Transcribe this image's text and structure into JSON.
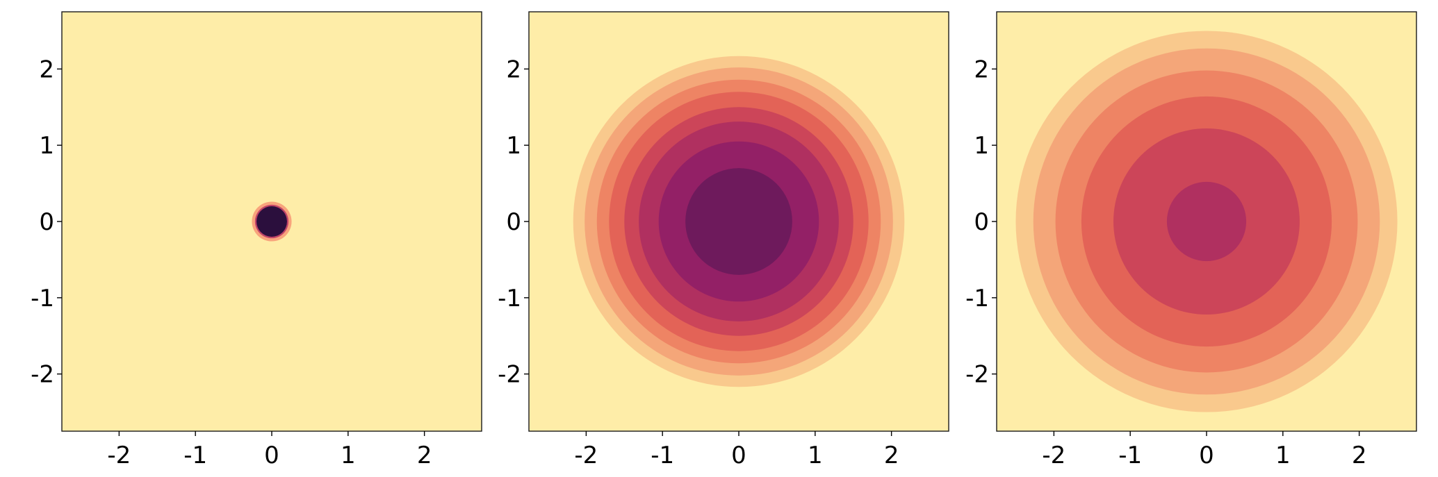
{
  "chart_data": [
    {
      "type": "contour",
      "xlim": [
        -2.75,
        2.75
      ],
      "ylim": [
        -2.75,
        2.75
      ],
      "xticks": [
        -2,
        -1,
        0,
        1,
        2
      ],
      "yticks": [
        -2,
        -1,
        0,
        1,
        2
      ],
      "xtick_labels": [
        "-2",
        "-1",
        "0",
        "1",
        "2"
      ],
      "ytick_labels": [
        "-2",
        "-1",
        "0",
        "1",
        "2"
      ],
      "grid": false,
      "background_color": "#feeda8",
      "levels": [
        {
          "radius": 0.26,
          "color": "#f8a47c"
        },
        {
          "radius": 0.22,
          "color": "#c04468"
        },
        {
          "radius": 0.2,
          "color": "#2b0f3d"
        }
      ]
    },
    {
      "type": "contour",
      "xlim": [
        -2.75,
        2.75
      ],
      "ylim": [
        -2.75,
        2.75
      ],
      "xticks": [
        -2,
        -1,
        0,
        1,
        2
      ],
      "yticks": [
        -2,
        -1,
        0,
        1,
        2
      ],
      "xtick_labels": [
        "-2",
        "-1",
        "0",
        "1",
        "2"
      ],
      "ytick_labels": [
        "-2",
        "-1",
        "0",
        "1",
        "2"
      ],
      "grid": false,
      "background_color": "#feeda8",
      "levels": [
        {
          "radius": 2.17,
          "color": "#f9c98d"
        },
        {
          "radius": 2.02,
          "color": "#f4a679"
        },
        {
          "radius": 1.86,
          "color": "#ee8464"
        },
        {
          "radius": 1.7,
          "color": "#e36357"
        },
        {
          "radius": 1.5,
          "color": "#cc4559"
        },
        {
          "radius": 1.31,
          "color": "#b03060"
        },
        {
          "radius": 1.05,
          "color": "#932066"
        },
        {
          "radius": 0.7,
          "color": "#6e1a5c"
        }
      ]
    },
    {
      "type": "contour",
      "xlim": [
        -2.75,
        2.75
      ],
      "ylim": [
        -2.75,
        2.75
      ],
      "xticks": [
        -2,
        -1,
        0,
        1,
        2
      ],
      "yticks": [
        -2,
        -1,
        0,
        1,
        2
      ],
      "xtick_labels": [
        "-2",
        "-1",
        "0",
        "1",
        "2"
      ],
      "ytick_labels": [
        "-2",
        "-1",
        "0",
        "1",
        "2"
      ],
      "grid": false,
      "background_color": "#feeda8",
      "levels": [
        {
          "radius": 2.5,
          "color": "#f9c98d"
        },
        {
          "radius": 2.27,
          "color": "#f4a679"
        },
        {
          "radius": 1.98,
          "color": "#ee8464"
        },
        {
          "radius": 1.64,
          "color": "#e36357"
        },
        {
          "radius": 1.22,
          "color": "#cc4559"
        },
        {
          "radius": 0.52,
          "color": "#b03060"
        }
      ]
    }
  ]
}
